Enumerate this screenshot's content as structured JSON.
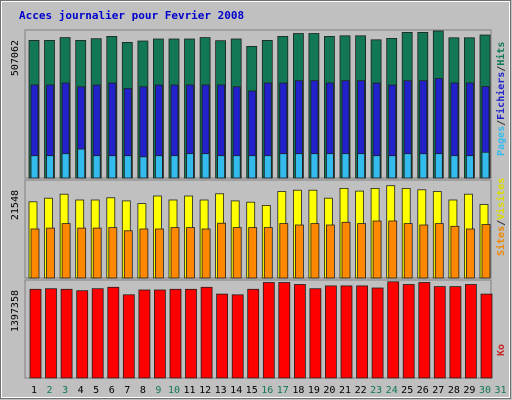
{
  "chart_data": {
    "type": "bar",
    "title": "Acces journalier pour Fevrier 2008",
    "categories": [
      "1",
      "2",
      "3",
      "4",
      "5",
      "6",
      "7",
      "8",
      "9",
      "10",
      "11",
      "12",
      "13",
      "14",
      "15",
      "16",
      "17",
      "18",
      "19",
      "20",
      "21",
      "22",
      "23",
      "24",
      "25",
      "26",
      "27",
      "28",
      "29",
      "30",
      "31"
    ],
    "weekend_days": [
      "2",
      "3",
      "9",
      "10",
      "16",
      "17",
      "23",
      "24",
      "30",
      "31"
    ],
    "panels": [
      {
        "name": "hits",
        "axis_label": "507062",
        "ymax": 507062,
        "legend": [
          "Pages",
          "/",
          "Fichiers",
          "/",
          "Hits"
        ],
        "legend_colors": [
          "#33bbee",
          "#333333",
          "#2222cc",
          "#333333",
          "#117755"
        ],
        "series": [
          {
            "name": "Hits",
            "color": "#117755",
            "values": [
              481000,
              481000,
              491000,
              481000,
              487000,
              495000,
              474000,
              479000,
              486000,
              486000,
              486000,
              491000,
              480000,
              486000,
              460000,
              481000,
              495000,
              505000,
              505000,
              495000,
              497000,
              497000,
              483000,
              488000,
              509000,
              509000,
              514000,
              490000,
              490000,
              500000
            ]
          },
          {
            "name": "Fichiers",
            "color": "#2222cc",
            "values": [
              325000,
              325000,
              332000,
              319000,
              325000,
              332000,
              313000,
              319000,
              325000,
              325000,
              325000,
              325000,
              325000,
              319000,
              304000,
              332000,
              332000,
              340000,
              340000,
              332000,
              340000,
              340000,
              332000,
              325000,
              340000,
              340000,
              348000,
              332000,
              332000,
              320000
            ]
          },
          {
            "name": "Pages",
            "color": "#33bbee",
            "values": [
              78000,
              78000,
              85000,
              101000,
              78000,
              78000,
              78000,
              74000,
              78000,
              78000,
              85000,
              85000,
              78000,
              78000,
              78000,
              78000,
              85000,
              85000,
              85000,
              85000,
              85000,
              85000,
              78000,
              78000,
              85000,
              85000,
              85000,
              78000,
              78000,
              90000
            ]
          }
        ]
      },
      {
        "name": "visites",
        "axis_label": "21548",
        "ymax": 21548,
        "legend": [
          "Sites",
          "/",
          "Visites"
        ],
        "legend_colors": [
          "#ee8800",
          "#333333",
          "#dddd00"
        ],
        "series": [
          {
            "name": "Visites",
            "color": "#ffff00",
            "values": [
              17100,
              17900,
              18800,
              17500,
              17500,
              18000,
              17300,
              16700,
              18400,
              17500,
              18400,
              17500,
              18900,
              17300,
              17000,
              16300,
              19400,
              19700,
              19700,
              17900,
              20100,
              19500,
              20100,
              20700,
              20100,
              19800,
              19400,
              17500,
              18800,
              16500
            ]
          },
          {
            "name": "Sites",
            "color": "#ff8800",
            "values": [
              11000,
              11200,
              12200,
              11200,
              11200,
              11300,
              10600,
              11000,
              11000,
              11300,
              11300,
              11000,
              12300,
              11300,
              11300,
              11300,
              12200,
              11900,
              12200,
              11900,
              12500,
              12200,
              12800,
              12800,
              12200,
              11900,
              12200,
              11600,
              11000,
              12000
            ]
          }
        ]
      },
      {
        "name": "ko",
        "axis_label": "1397358",
        "ymax": 1397358,
        "legend": [
          "Ko"
        ],
        "legend_colors": [
          "#cc2222"
        ],
        "series": [
          {
            "name": "Ko",
            "color": "#ff0000",
            "values": [
              1290000,
              1300000,
              1290000,
              1270000,
              1300000,
              1320000,
              1210000,
              1280000,
              1280000,
              1290000,
              1290000,
              1320000,
              1220000,
              1210000,
              1290000,
              1390000,
              1390000,
              1360000,
              1300000,
              1340000,
              1340000,
              1340000,
              1310000,
              1400000,
              1360000,
              1390000,
              1330000,
              1330000,
              1360000,
              1220000
            ]
          }
        ]
      }
    ]
  },
  "colors": {
    "background": "#c0c0c0",
    "title": "#0000cc",
    "axis_text": "#000000",
    "weekday_label": "#000000",
    "weekend_label": "#117755"
  }
}
